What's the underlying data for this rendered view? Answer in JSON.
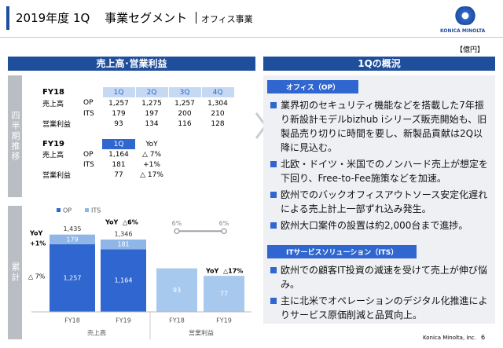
{
  "header": {
    "title": "2019年度 1Q",
    "segment": "事業セグメント",
    "business": "オフィス事業",
    "logo": "KONICA MINOLTA",
    "unit": "【億円】"
  },
  "left": {
    "title": "売上高･営業利益",
    "quarterly_label": "四半期推移",
    "cumulative_label": "累計",
    "fy18": {
      "header": [
        "FY18",
        "1Q",
        "2Q",
        "3Q",
        "4Q"
      ],
      "rows": [
        {
          "label": "売上高",
          "sub": "OP",
          "cells": [
            "1,257",
            "1,275",
            "1,257",
            "1,304"
          ]
        },
        {
          "sub": "ITS",
          "cells": [
            "179",
            "197",
            "200",
            "210"
          ]
        },
        {
          "label": "営業利益",
          "cells": [
            "93",
            "134",
            "116",
            "128"
          ]
        }
      ]
    },
    "fy19": {
      "header": [
        "FY19",
        "1Q",
        "YoY"
      ],
      "rows": [
        {
          "label": "売上高",
          "sub": "OP",
          "cells": [
            "1,164",
            "△ 7%"
          ]
        },
        {
          "sub": "ITS",
          "cells": [
            "181",
            "+1%"
          ]
        },
        {
          "label": "営業利益",
          "cells": [
            "77",
            "△ 17%"
          ]
        }
      ]
    }
  },
  "chart": {
    "series": [
      {
        "name": "OP",
        "color": "#2f66cf"
      },
      {
        "name": "ITS",
        "color": "#8fb6e6"
      }
    ],
    "categories": [
      "FY18",
      "FY19",
      "FY18",
      "FY19"
    ],
    "groups": [
      "売上高",
      "営業利益"
    ],
    "sales": {
      "ylim": [
        0,
        2000
      ],
      "op": [
        1257,
        1164
      ],
      "op_labels": [
        "1,257",
        "1,164"
      ],
      "its": [
        179,
        181
      ],
      "totals": [
        1435,
        1346
      ],
      "total_labels": [
        "1,435",
        "1,346"
      ]
    },
    "profit": {
      "ylim": [
        0,
        230
      ],
      "values": [
        93,
        77
      ],
      "color": "#a8c9ee"
    },
    "margin": {
      "ylim": [
        0,
        8
      ],
      "values": [
        6,
        6
      ],
      "value_labels": [
        "6%",
        "6%"
      ]
    },
    "yoy": {
      "label": "YoY",
      "its": "+1%",
      "op": "△ 7%",
      "sales": "△6%",
      "profit": "△17%"
    }
  },
  "right": {
    "title": "1Qの概況",
    "sections": [
      {
        "heading": "オフィス（OP）",
        "bullets": [
          "業界初のセキュリティ機能などを搭載した7年振り新設計モデルbizhub iシリーズ販売開始も、旧製品売り切りに時間を要し、新製品貢献は2Q以降に見込む。",
          "北欧・ドイツ・米国でのノンハード売上が想定を下回り、Free-to-Fee施策などを加速。",
          "欧州でのバックオフィスアウトソース安定化遅れによる売上計上一部ずれ込み発生。",
          "欧州大口案件の設置は約2,000台まで進捗。"
        ]
      },
      {
        "heading": "ITサービスソリューション（ITS）",
        "bullets": [
          "欧州での顧客IT投資の減速を受けて売上が伸び悩み。",
          "主に北米でオペレーションのデジタル化推進によりサービス原価削減と品質向上。"
        ]
      }
    ]
  },
  "footer": {
    "company": "Konica Minolta, Inc.",
    "page": "6"
  }
}
